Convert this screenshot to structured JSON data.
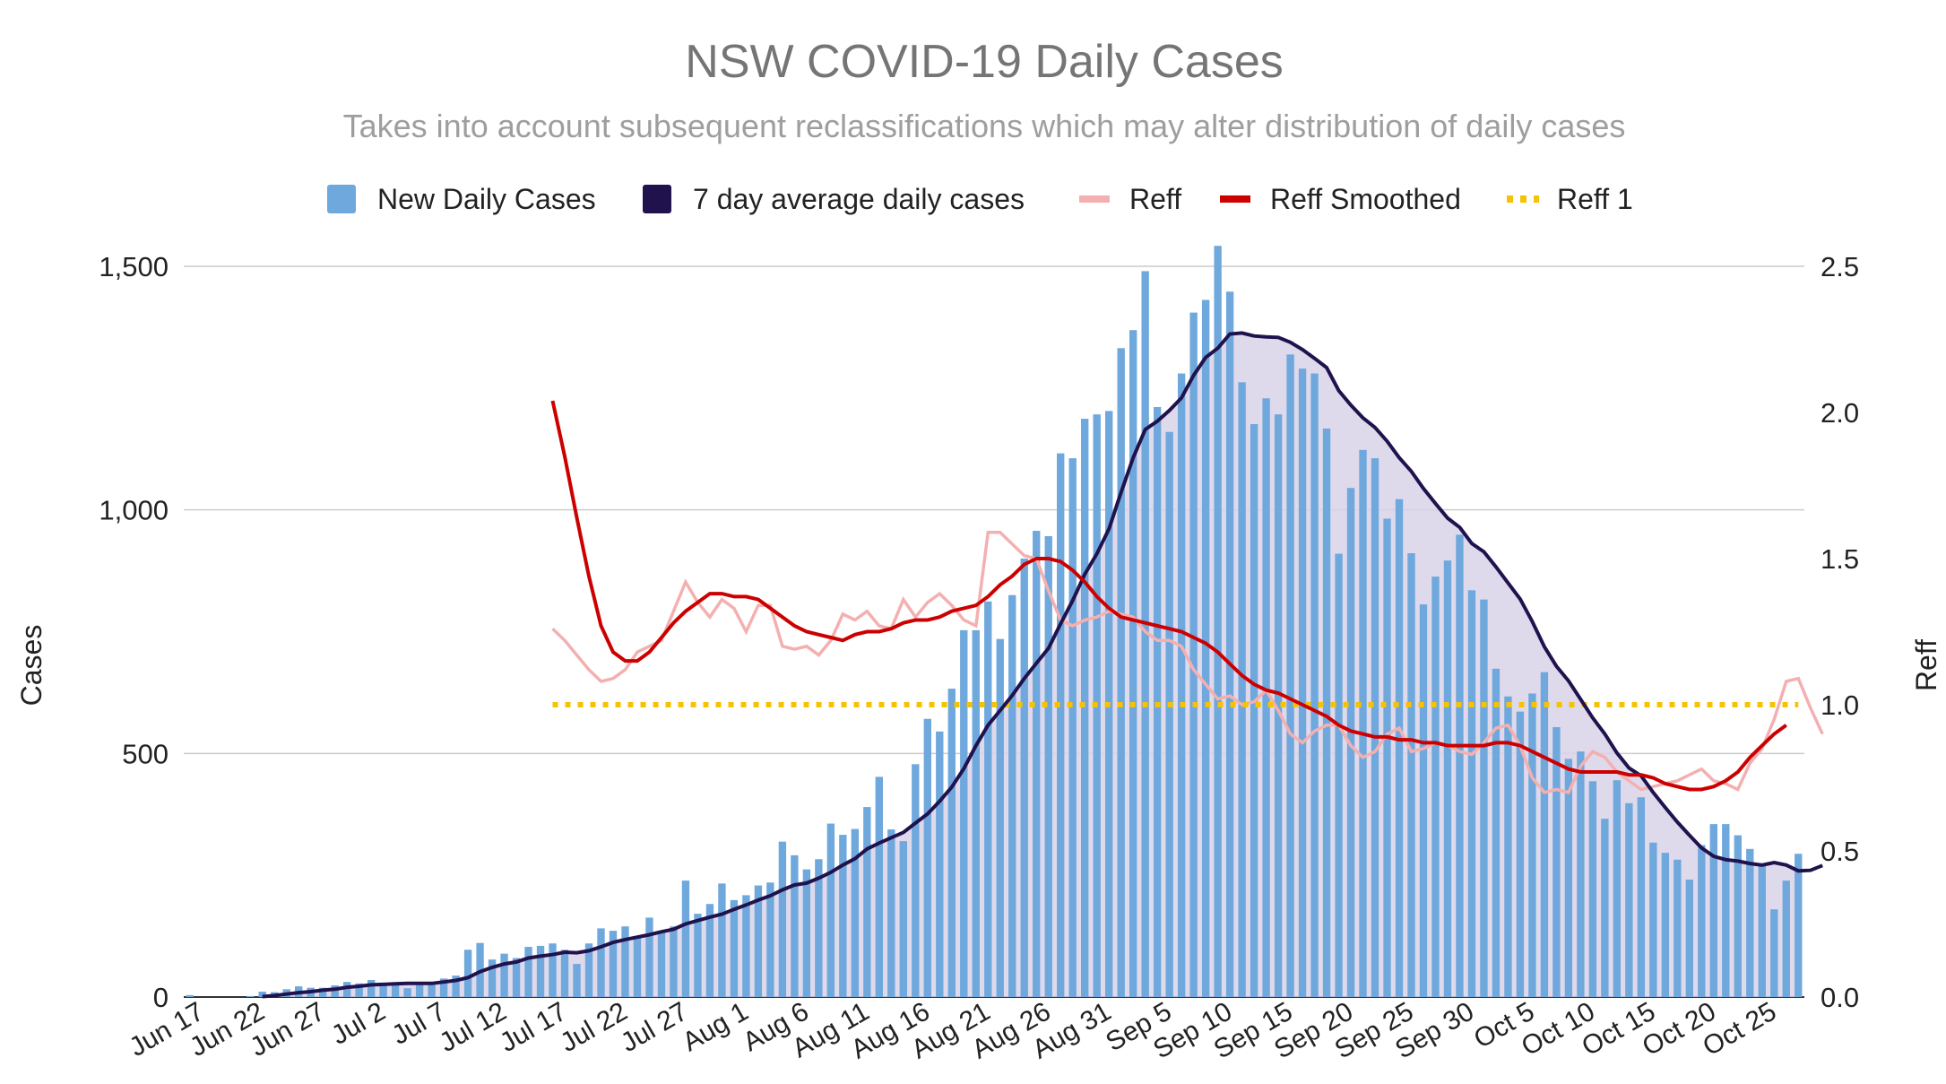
{
  "chart_data": {
    "type": "bar",
    "title": "NSW COVID-19 Daily Cases",
    "subtitle": "Takes into account subsequent reclassifications which may alter distribution of daily cases",
    "ylabel": "Cases",
    "y2label": "Reff",
    "ylim": [
      0,
      1500
    ],
    "y2lim": [
      0.0,
      2.5
    ],
    "yticks": [
      "0",
      "500",
      "1,000",
      "1,500"
    ],
    "y2ticks": [
      "0.0",
      "0.5",
      "1.0",
      "1.5",
      "2.0",
      "2.5"
    ],
    "xticks": [
      "Jun 17",
      "Jun 22",
      "Jun 27",
      "Jul 2",
      "Jul 7",
      "Jul 12",
      "Jul 17",
      "Jul 22",
      "Jul 27",
      "Aug 1",
      "Aug 6",
      "Aug 11",
      "Aug 16",
      "Aug 21",
      "Aug 26",
      "Aug 31",
      "Sep 5",
      "Sep 10",
      "Sep 15",
      "Sep 20",
      "Sep 25",
      "Sep 30",
      "Oct 5",
      "Oct 10",
      "Oct 15",
      "Oct 20",
      "Oct 25"
    ],
    "grid": true,
    "legend_position": "top",
    "legend": [
      "New Daily Cases",
      "7 day average daily cases",
      "Reff",
      "Reff Smoothed",
      "Reff 1"
    ],
    "colors": {
      "bars": "#6fa8dc",
      "avg": "#20124d",
      "avg_fill": "#d9d2e9",
      "reff": "#f4b0b0",
      "reff_smoothed": "#cc0000",
      "reff1": "#f7c204"
    },
    "series": [
      {
        "name": "New Daily Cases",
        "axis": "left",
        "values": [
          4,
          0,
          0,
          0,
          0,
          2,
          11,
          10,
          16,
          22,
          19,
          19,
          24,
          31,
          28,
          35,
          24,
          27,
          18,
          26,
          30,
          38,
          44,
          97,
          111,
          77,
          89,
          80,
          103,
          105,
          110,
          97,
          68,
          110,
          141,
          136,
          145,
          124,
          163,
          136,
          145,
          239,
          171,
          191,
          233,
          199,
          209,
          229,
          235,
          319,
          291,
          262,
          283,
          356,
          333,
          345,
          390,
          452,
          344,
          320,
          478,
          571,
          545,
          633,
          753,
          753,
          812,
          735,
          825,
          900,
          957,
          946,
          1116,
          1106,
          1187,
          1196,
          1203,
          1332,
          1369,
          1490,
          1211,
          1160,
          1280,
          1405,
          1431,
          1542,
          1448,
          1262,
          1176,
          1229,
          1196,
          1319,
          1290,
          1280,
          1167,
          910,
          1045,
          1123,
          1106,
          982,
          1022,
          911,
          806,
          863,
          896,
          949,
          835,
          816,
          674,
          617,
          586,
          623,
          667,
          554,
          489,
          504,
          443,
          366,
          445,
          398,
          410,
          317,
          296,
          282,
          241,
          312,
          355,
          355,
          332,
          304,
          274,
          180,
          239,
          294
        ]
      },
      {
        "name": "7 day average daily cases",
        "axis": "left",
        "values": [
          null,
          null,
          null,
          null,
          null,
          null,
          1,
          3,
          6,
          9,
          11,
          14,
          16,
          20,
          22,
          25,
          26,
          27,
          28,
          28,
          28,
          31,
          34,
          40,
          52,
          61,
          68,
          72,
          80,
          84,
          87,
          92,
          91,
          95,
          103,
          112,
          118,
          123,
          128,
          134,
          139,
          150,
          157,
          164,
          170,
          180,
          189,
          199,
          208,
          220,
          230,
          234,
          244,
          256,
          271,
          284,
          304,
          316,
          327,
          338,
          357,
          376,
          402,
          431,
          469,
          516,
          558,
          588,
          619,
          654,
          685,
          716,
          766,
          814,
          868,
          910,
          961,
          1036,
          1107,
          1165,
          1182,
          1204,
          1230,
          1276,
          1313,
          1332,
          1361,
          1363,
          1357,
          1355,
          1354,
          1344,
          1329,
          1311,
          1292,
          1245,
          1215,
          1189,
          1169,
          1141,
          1107,
          1079,
          1044,
          1013,
          983,
          964,
          931,
          914,
          883,
          850,
          817,
          771,
          719,
          679,
          649,
          611,
          573,
          540,
          501,
          470,
          454,
          420,
          389,
          359,
          332,
          306,
          289,
          282,
          279,
          274,
          271,
          276,
          271,
          259,
          260,
          270
        ]
      },
      {
        "name": "Reff",
        "axis": "right",
        "values": [
          null,
          null,
          null,
          null,
          null,
          null,
          null,
          null,
          null,
          null,
          null,
          null,
          null,
          null,
          null,
          null,
          null,
          null,
          null,
          null,
          null,
          null,
          null,
          null,
          null,
          null,
          null,
          null,
          null,
          null,
          1.26,
          1.22,
          1.17,
          1.12,
          1.08,
          1.09,
          1.12,
          1.18,
          1.2,
          1.22,
          1.32,
          1.42,
          1.35,
          1.3,
          1.36,
          1.33,
          1.25,
          1.34,
          1.34,
          1.2,
          1.19,
          1.2,
          1.17,
          1.22,
          1.31,
          1.29,
          1.32,
          1.27,
          1.26,
          1.36,
          1.3,
          1.35,
          1.38,
          1.34,
          1.29,
          1.27,
          1.59,
          1.59,
          1.55,
          1.51,
          1.5,
          1.39,
          1.29,
          1.27,
          1.29,
          1.3,
          1.32,
          1.31,
          1.3,
          1.25,
          1.22,
          1.22,
          1.2,
          1.12,
          1.07,
          1.02,
          1.03,
          1.0,
          1.01,
          1.05,
          0.98,
          0.9,
          0.87,
          0.91,
          0.93,
          0.93,
          0.86,
          0.82,
          0.84,
          0.9,
          0.92,
          0.84,
          0.85,
          0.87,
          0.86,
          0.84,
          0.83,
          0.87,
          0.92,
          0.93,
          0.86,
          0.75,
          0.7,
          0.71,
          0.7,
          0.79,
          0.84,
          0.82,
          0.77,
          0.74,
          0.71,
          0.72,
          0.73,
          0.74,
          0.76,
          0.78,
          0.74,
          0.73,
          0.71,
          0.8,
          0.85,
          0.95,
          1.08,
          1.09,
          0.99,
          0.9
        ]
      },
      {
        "name": "Reff Smoothed",
        "axis": "right",
        "values": [
          null,
          null,
          null,
          null,
          null,
          null,
          null,
          null,
          null,
          null,
          null,
          null,
          null,
          null,
          null,
          null,
          null,
          null,
          null,
          null,
          null,
          null,
          null,
          null,
          null,
          null,
          null,
          null,
          null,
          null,
          2.04,
          1.85,
          1.64,
          1.44,
          1.27,
          1.18,
          1.15,
          1.15,
          1.18,
          1.23,
          1.28,
          1.32,
          1.35,
          1.38,
          1.38,
          1.37,
          1.37,
          1.36,
          1.33,
          1.3,
          1.27,
          1.25,
          1.24,
          1.23,
          1.22,
          1.24,
          1.25,
          1.25,
          1.26,
          1.28,
          1.29,
          1.29,
          1.3,
          1.32,
          1.33,
          1.34,
          1.37,
          1.41,
          1.44,
          1.48,
          1.5,
          1.5,
          1.49,
          1.46,
          1.42,
          1.37,
          1.33,
          1.3,
          1.29,
          1.28,
          1.27,
          1.26,
          1.25,
          1.23,
          1.21,
          1.18,
          1.14,
          1.1,
          1.07,
          1.05,
          1.04,
          1.02,
          1.0,
          0.98,
          0.96,
          0.93,
          0.91,
          0.9,
          0.89,
          0.89,
          0.88,
          0.88,
          0.87,
          0.87,
          0.86,
          0.86,
          0.86,
          0.86,
          0.87,
          0.87,
          0.86,
          0.84,
          0.82,
          0.8,
          0.78,
          0.77,
          0.77,
          0.77,
          0.77,
          0.76,
          0.76,
          0.75,
          0.73,
          0.72,
          0.71,
          0.71,
          0.72,
          0.74,
          0.77,
          0.82,
          0.86,
          0.9,
          0.93
        ]
      },
      {
        "name": "Reff 1",
        "axis": "right",
        "constant": 1.0,
        "from_index": 30
      }
    ]
  }
}
